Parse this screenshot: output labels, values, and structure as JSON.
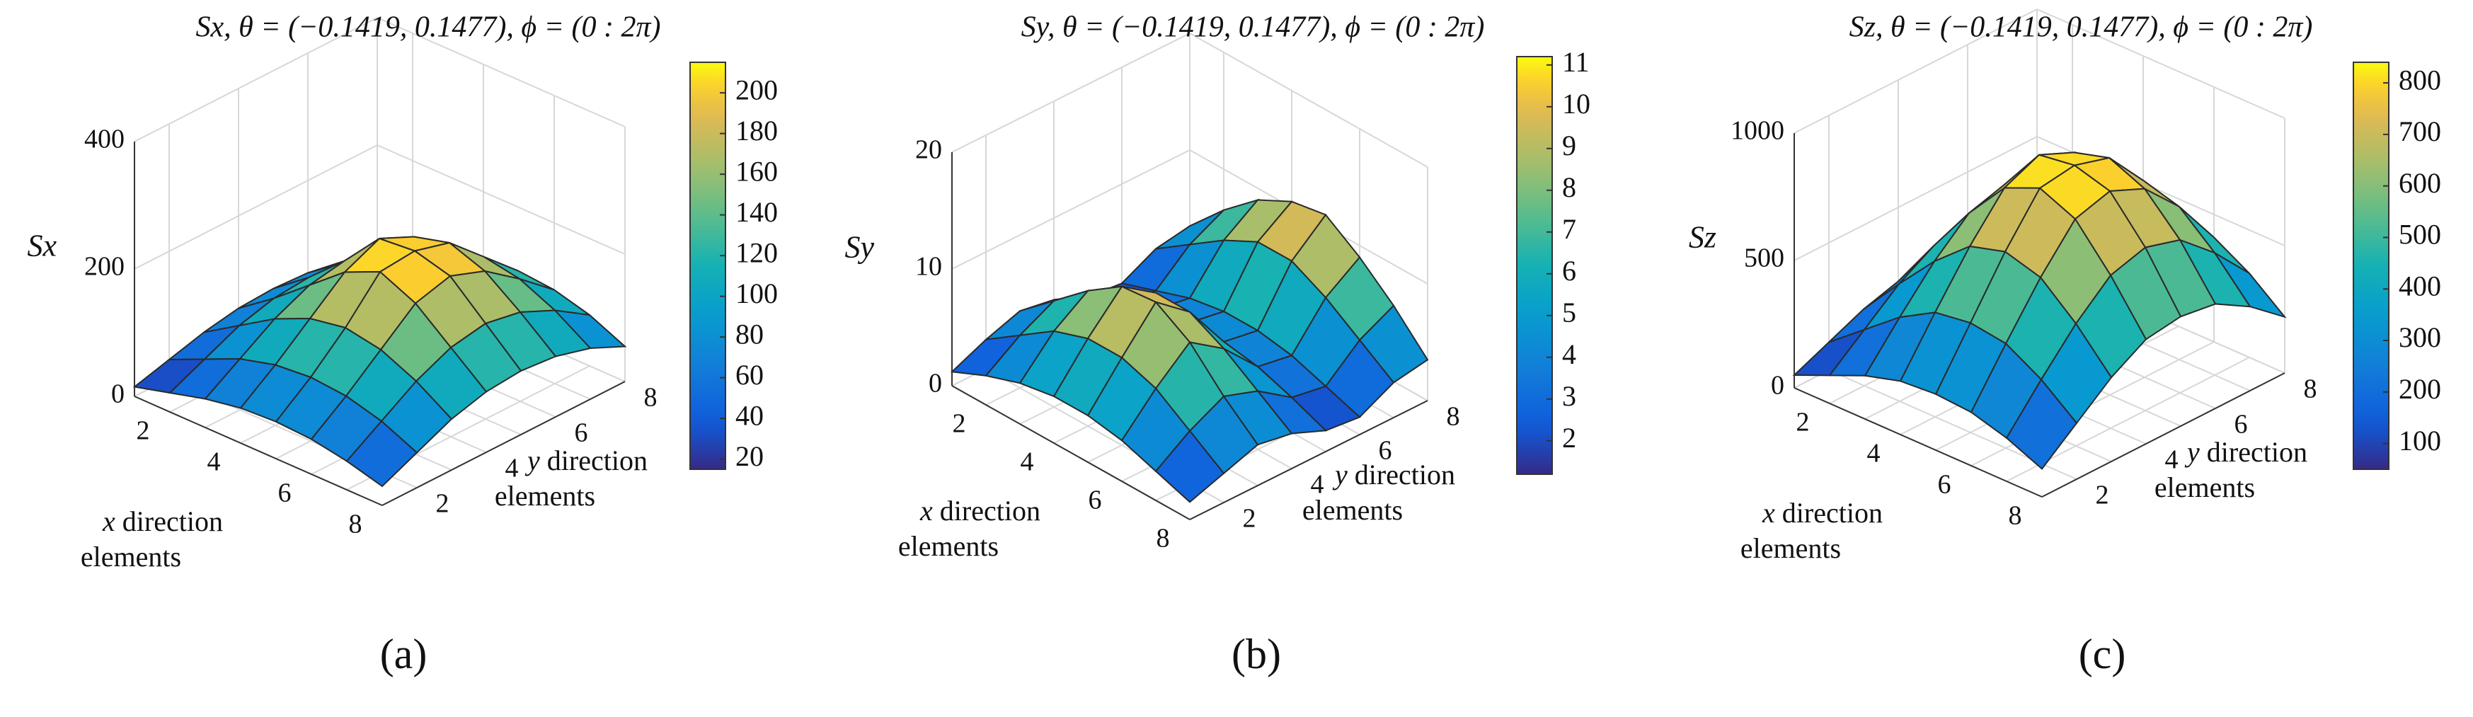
{
  "figure": {
    "panels": [
      {
        "label": "(a)",
        "title": "Sx, θ = (−0.1419, 0.1477), ϕ = (0 : 2π)"
      },
      {
        "label": "(b)",
        "title": "Sy, θ = (−0.1419, 0.1477), ϕ = (0 : 2π)"
      },
      {
        "label": "(c)",
        "title": "Sz, θ = (−0.1419, 0.1477), ϕ = (0 : 2π)"
      }
    ]
  },
  "chart_data": [
    {
      "type": "surface",
      "title": "Sx, θ = (−0.1419, 0.1477), ϕ = (0 : 2π)",
      "xlabel": "x direction elements",
      "ylabel": "y direction elements",
      "zlabel": "Sx",
      "x": [
        1,
        2,
        3,
        4,
        5,
        6,
        7,
        8
      ],
      "y": [
        1,
        2,
        3,
        4,
        5,
        6,
        7,
        8
      ],
      "x_ticks": [
        "2",
        "4",
        "6",
        "8"
      ],
      "y_ticks": [
        "2",
        "4",
        "6",
        "8"
      ],
      "z_ticks": [
        "0",
        "200",
        "400"
      ],
      "zlim": [
        0,
        400
      ],
      "colorbar": {
        "range": [
          15,
          215
        ],
        "ticks": [
          "20",
          "40",
          "60",
          "80",
          "100",
          "120",
          "140",
          "160",
          "180",
          "200"
        ],
        "colormap": "parula"
      },
      "z": [
        [
          15,
          30,
          45,
          55,
          58,
          55,
          45,
          30
        ],
        [
          30,
          55,
          80,
          95,
          100,
          95,
          80,
          55
        ],
        [
          45,
          80,
          115,
          140,
          150,
          140,
          115,
          80
        ],
        [
          55,
          95,
          140,
          185,
          210,
          185,
          140,
          95
        ],
        [
          58,
          100,
          150,
          210,
          215,
          200,
          150,
          100
        ],
        [
          55,
          95,
          140,
          185,
          200,
          180,
          140,
          95
        ],
        [
          45,
          80,
          115,
          140,
          150,
          140,
          115,
          80
        ],
        [
          30,
          55,
          80,
          95,
          100,
          95,
          80,
          55
        ]
      ]
    },
    {
      "type": "surface",
      "title": "Sy, θ = (−0.1419, 0.1477), ϕ = (0 : 2π)",
      "xlabel": "x direction elements",
      "ylabel": "y direction elements",
      "zlabel": "Sy",
      "x": [
        1,
        2,
        3,
        4,
        5,
        6,
        7,
        8
      ],
      "y": [
        1,
        2,
        3,
        4,
        5,
        6,
        7,
        8
      ],
      "x_ticks": [
        "2",
        "4",
        "6",
        "8"
      ],
      "y_ticks": [
        "2",
        "4",
        "6",
        "8"
      ],
      "z_ticks": [
        "0",
        "10",
        "20"
      ],
      "zlim": [
        0,
        20
      ],
      "colorbar": {
        "range": [
          1.2,
          11.2
        ],
        "ticks": [
          "2",
          "3",
          "4",
          "5",
          "6",
          "7",
          "8",
          "9",
          "10",
          "11"
        ],
        "colormap": "parula"
      },
      "z": [
        [
          1.2,
          2.5,
          3.5,
          3.0,
          1.8,
          1.5,
          3.0,
          3.5
        ],
        [
          2.5,
          4.5,
          6.0,
          5.0,
          3.0,
          2.5,
          5.0,
          6.5
        ],
        [
          3.5,
          6.5,
          8.5,
          7.0,
          4.0,
          3.5,
          7.0,
          9.0
        ],
        [
          4.0,
          7.5,
          10.5,
          8.5,
          4.5,
          4.0,
          8.5,
          10.5
        ],
        [
          4.0,
          7.5,
          10.8,
          8.5,
          4.5,
          4.0,
          8.5,
          11.0
        ],
        [
          3.5,
          6.5,
          9.0,
          7.0,
          4.0,
          3.5,
          7.0,
          9.0
        ],
        [
          2.5,
          4.5,
          6.0,
          5.0,
          3.0,
          2.5,
          5.0,
          6.5
        ],
        [
          1.5,
          2.5,
          3.5,
          3.0,
          1.8,
          1.5,
          3.0,
          3.5
        ]
      ]
    },
    {
      "type": "surface",
      "title": "Sz, θ = (−0.1419, 0.1477), ϕ = (0 : 2π)",
      "xlabel": "x direction elements",
      "ylabel": "y direction elements",
      "zlabel": "Sz",
      "x": [
        1,
        2,
        3,
        4,
        5,
        6,
        7,
        8
      ],
      "y": [
        1,
        2,
        3,
        4,
        5,
        6,
        7,
        8
      ],
      "x_ticks": [
        "2",
        "4",
        "6",
        "8"
      ],
      "y_ticks": [
        "2",
        "4",
        "6",
        "8"
      ],
      "z_ticks": [
        "0",
        "500",
        "1000"
      ],
      "zlim": [
        0,
        1000
      ],
      "colorbar": {
        "range": [
          50,
          840
        ],
        "ticks": [
          "100",
          "200",
          "300",
          "400",
          "500",
          "600",
          "700",
          "800"
        ],
        "colormap": "parula"
      },
      "z": [
        [
          50,
          110,
          170,
          210,
          220,
          210,
          170,
          110
        ],
        [
          110,
          220,
          330,
          410,
          430,
          410,
          330,
          220
        ],
        [
          170,
          330,
          480,
          600,
          640,
          600,
          480,
          330
        ],
        [
          210,
          410,
          600,
          760,
          820,
          760,
          600,
          410
        ],
        [
          220,
          430,
          640,
          820,
          840,
          800,
          640,
          430
        ],
        [
          210,
          410,
          600,
          760,
          800,
          740,
          600,
          410
        ],
        [
          170,
          330,
          480,
          600,
          640,
          600,
          480,
          330
        ],
        [
          110,
          220,
          330,
          410,
          430,
          410,
          330,
          220
        ]
      ]
    }
  ]
}
